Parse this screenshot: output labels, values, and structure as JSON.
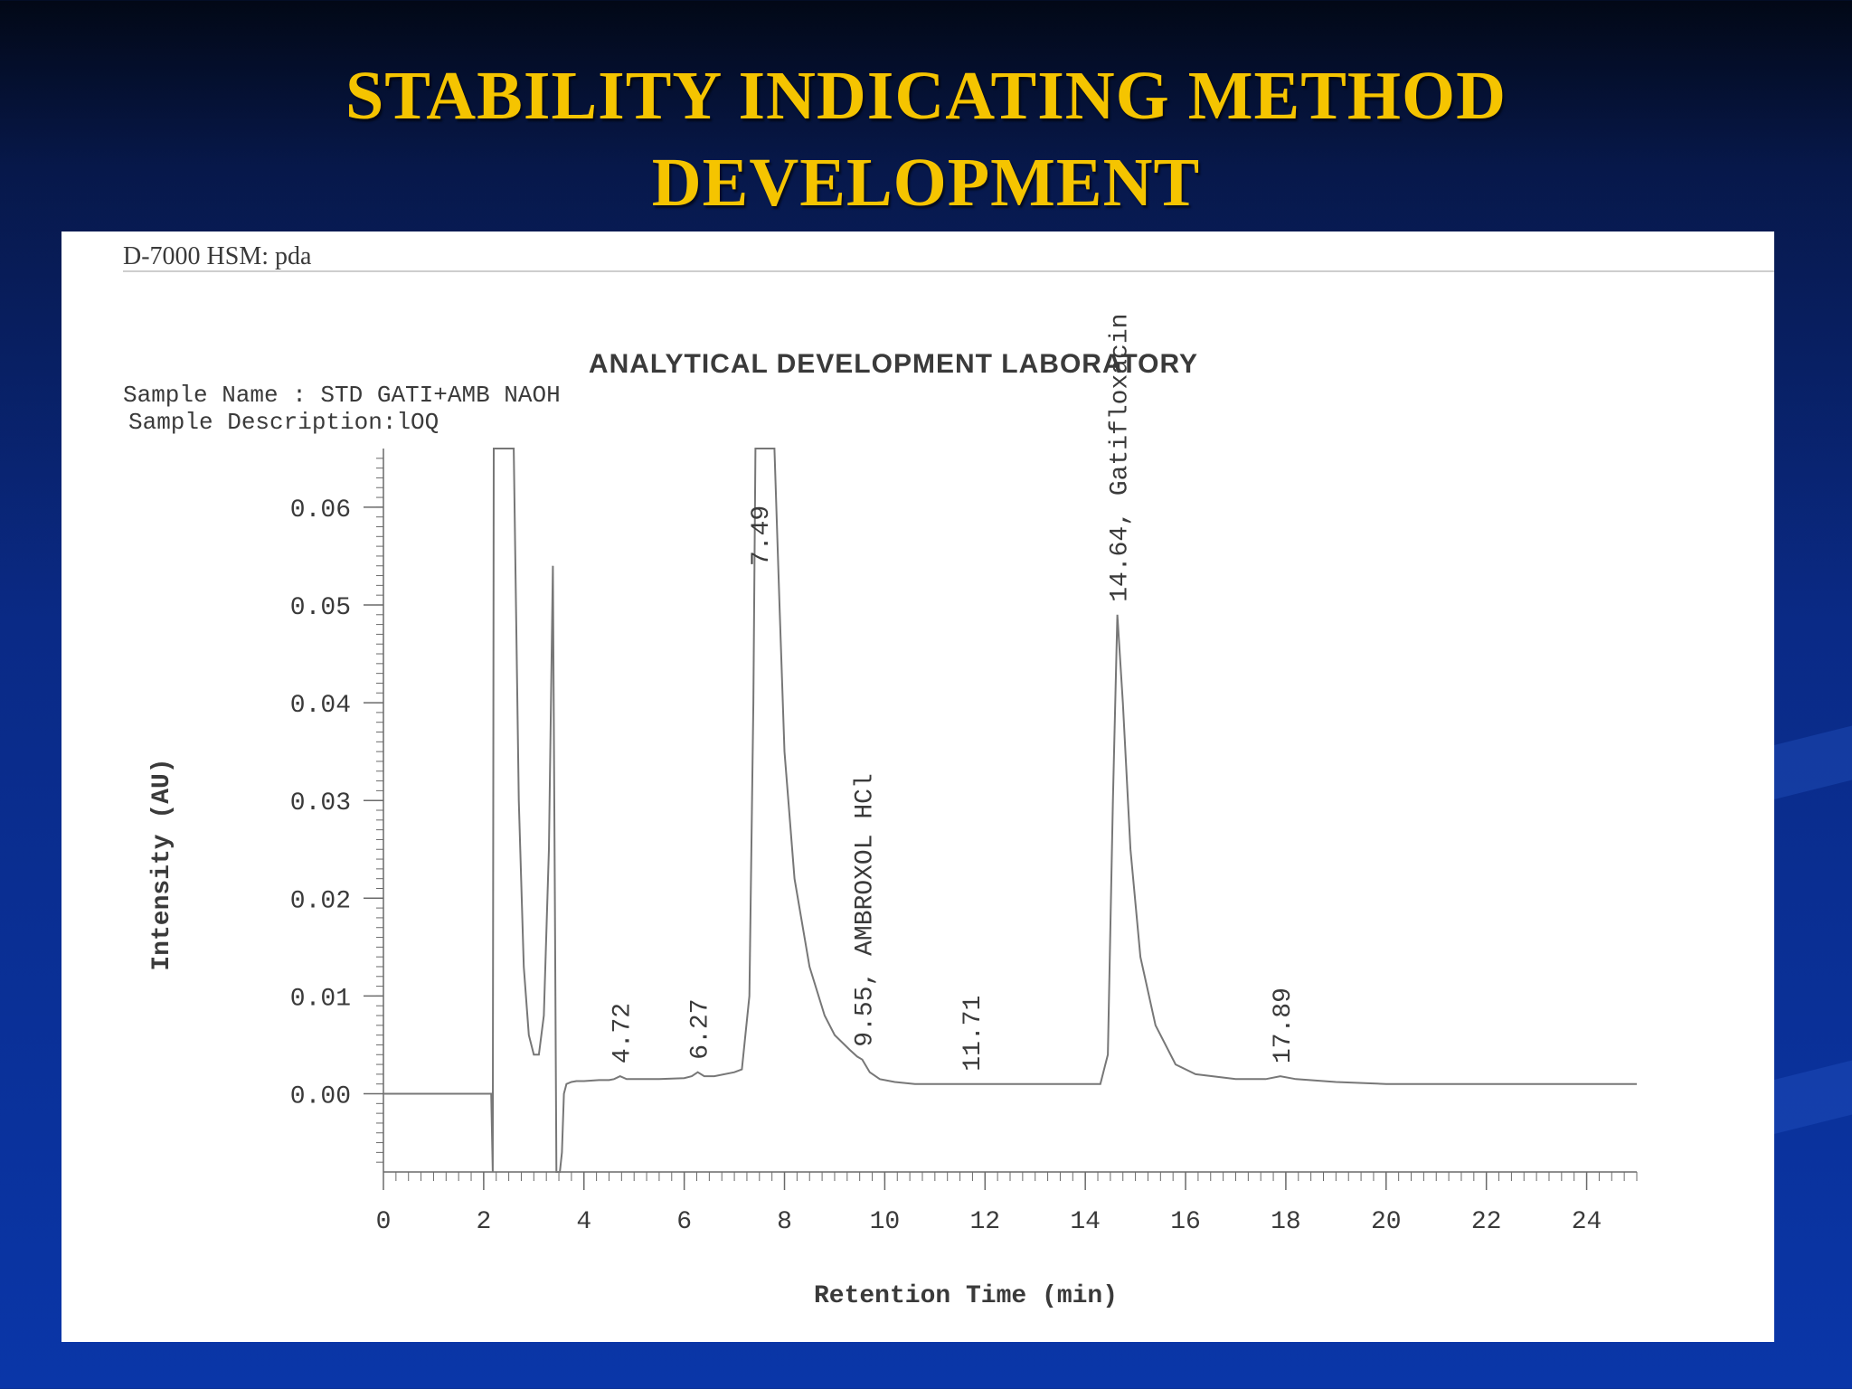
{
  "slide": {
    "title_line1": "STABILITY INDICATING METHOD",
    "title_line2": "DEVELOPMENT"
  },
  "colors": {
    "background": "#0a2a86",
    "title": "#f5c400",
    "panel": "#ffffff",
    "trace": "#6a6a6a"
  },
  "chart_data": {
    "type": "line",
    "header": "D-7000 HSM: pda",
    "title": "ANALYTICAL DEVELOPMENT LABORATORY",
    "sample_name": "Sample Name : STD GATI+AMB NAOH",
    "sample_description": "Sample Description:lOQ",
    "xlabel": "Retention Time (min)",
    "ylabel": "Intensity (AU)",
    "xlim": [
      0,
      25
    ],
    "ylim": [
      -0.008,
      0.066
    ],
    "xticks": [
      "0",
      "2",
      "4",
      "6",
      "8",
      "10",
      "12",
      "14",
      "16",
      "18",
      "20",
      "22",
      "24"
    ],
    "yticks": [
      "0.00",
      "0.01",
      "0.02",
      "0.03",
      "0.04",
      "0.05",
      "0.06"
    ],
    "grid": false,
    "series": [
      {
        "x": [
          0,
          1.0,
          2.15,
          2.18,
          2.2,
          2.22,
          2.25,
          2.3,
          2.4,
          2.5,
          2.55,
          2.6,
          2.7,
          2.8,
          2.9,
          3.0,
          3.1,
          3.2,
          3.3,
          3.38,
          3.42,
          3.45,
          3.48,
          3.52,
          3.56,
          3.6,
          3.65,
          3.75,
          3.85,
          4.0,
          4.3,
          4.5,
          4.6,
          4.72,
          4.85,
          5.0,
          5.5,
          6.0,
          6.15,
          6.27,
          6.4,
          6.6,
          7.0,
          7.15,
          7.3,
          7.38,
          7.42,
          7.45,
          7.49,
          7.55,
          7.65,
          7.8,
          7.9,
          8.0,
          8.2,
          8.5,
          8.8,
          9.0,
          9.3,
          9.45,
          9.55,
          9.7,
          9.9,
          10.2,
          10.6,
          11.0,
          11.5,
          11.71,
          11.9,
          12.5,
          13.5,
          14.3,
          14.45,
          14.55,
          14.64,
          14.75,
          14.9,
          15.1,
          15.4,
          15.8,
          16.2,
          17.0,
          17.6,
          17.89,
          18.2,
          19,
          20,
          22,
          24,
          25
        ],
        "y": [
          0.0,
          0.0,
          0.0,
          -0.008,
          0.066,
          0.066,
          0.066,
          0.066,
          0.066,
          0.066,
          0.066,
          0.066,
          0.03,
          0.013,
          0.006,
          0.004,
          0.004,
          0.008,
          0.025,
          0.054,
          0.02,
          -0.008,
          -0.008,
          -0.008,
          -0.006,
          0.0,
          0.001,
          0.0012,
          0.0013,
          0.0013,
          0.0014,
          0.0014,
          0.0015,
          0.0018,
          0.0015,
          0.0015,
          0.0015,
          0.0016,
          0.0018,
          0.0022,
          0.0018,
          0.0018,
          0.0022,
          0.0025,
          0.01,
          0.04,
          0.066,
          0.066,
          0.066,
          0.066,
          0.066,
          0.066,
          0.05,
          0.035,
          0.022,
          0.013,
          0.008,
          0.006,
          0.0045,
          0.0038,
          0.0035,
          0.0022,
          0.0015,
          0.0012,
          0.001,
          0.001,
          0.001,
          0.001,
          0.001,
          0.001,
          0.001,
          0.001,
          0.004,
          0.03,
          0.049,
          0.04,
          0.025,
          0.014,
          0.007,
          0.003,
          0.002,
          0.0015,
          0.0015,
          0.0018,
          0.0015,
          0.0012,
          0.001,
          0.001,
          0.001,
          0.001
        ]
      }
    ],
    "peak_labels": [
      {
        "x": 4.72,
        "y": 0.0018,
        "text": "4.72"
      },
      {
        "x": 6.27,
        "y": 0.0022,
        "text": "6.27"
      },
      {
        "x": 7.49,
        "y": 0.066,
        "text": "7.49"
      },
      {
        "x": 9.55,
        "y": 0.0035,
        "text": "9.55, AMBROXOL HCl"
      },
      {
        "x": 11.71,
        "y": 0.001,
        "text": "11.71"
      },
      {
        "x": 14.64,
        "y": 0.049,
        "text": "14.64, Gatifloxacin"
      },
      {
        "x": 17.89,
        "y": 0.0018,
        "text": "17.89"
      }
    ]
  }
}
